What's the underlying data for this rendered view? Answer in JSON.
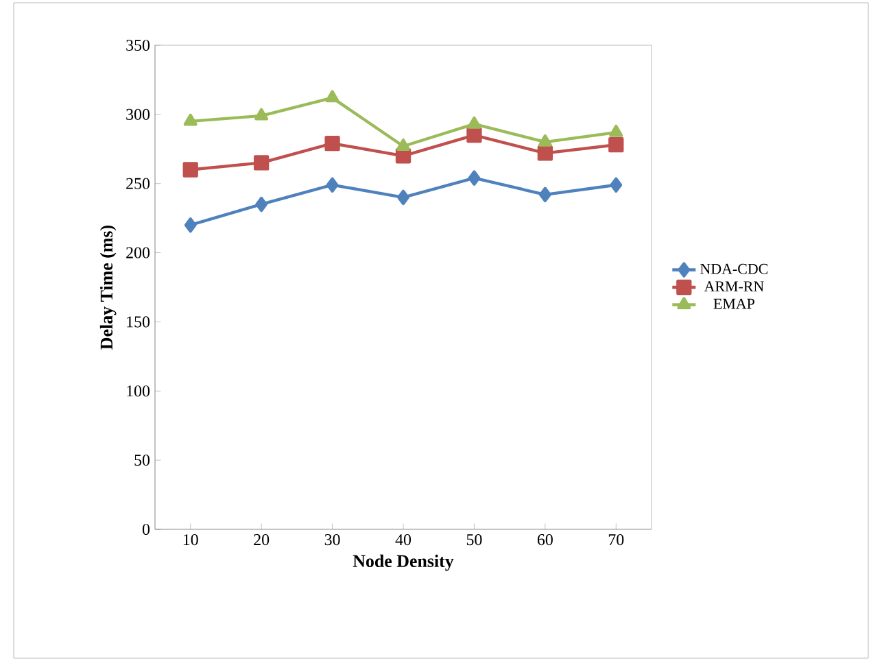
{
  "chart_data": {
    "type": "line",
    "xlabel": "Node Density",
    "ylabel": "Delay Time (ms)",
    "categories": [
      "10",
      "20",
      "30",
      "40",
      "50",
      "60",
      "70"
    ],
    "series": [
      {
        "name": "NDA-CDC",
        "color": "#4f81bd",
        "marker": "diamond",
        "values": [
          220,
          235,
          249,
          240,
          254,
          242,
          249
        ]
      },
      {
        "name": "ARM-RN",
        "color": "#c0504d",
        "marker": "square",
        "values": [
          260,
          265,
          279,
          270,
          285,
          272,
          278
        ]
      },
      {
        "name": "EMAP",
        "color": "#9bbb59",
        "marker": "triangle",
        "values": [
          295,
          299,
          312,
          277,
          293,
          280,
          287
        ]
      }
    ],
    "ylim": [
      0,
      350
    ],
    "yticks": [
      0,
      50,
      100,
      150,
      200,
      250,
      300,
      350
    ],
    "grid": false,
    "legend": "right",
    "line_style": "solid"
  }
}
